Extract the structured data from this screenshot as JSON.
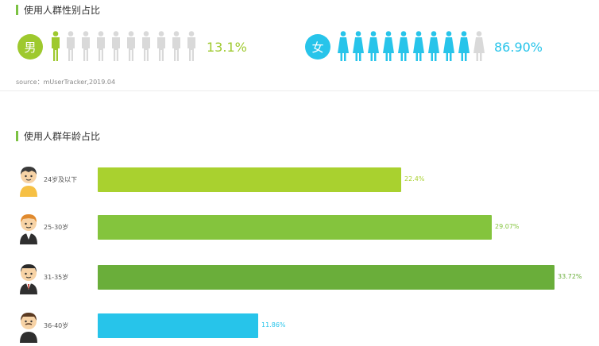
{
  "section1": {
    "title": "使用人群性别占比"
  },
  "gender": {
    "male": {
      "symbol": "男",
      "percent_text": "13.1%",
      "value": 13.1,
      "color": "#9ec92e",
      "icon": "male-person-icon"
    },
    "female": {
      "symbol": "女",
      "percent_text": "86.90%",
      "value": 86.9,
      "color": "#27c4ea",
      "icon": "female-person-icon"
    },
    "inactive_color": "#d9d9d9"
  },
  "source": {
    "text": "source：mUserTracker,2019.04"
  },
  "section2": {
    "title": "使用人群年龄占比"
  },
  "chart_data": [
    {
      "type": "pictogram",
      "categories": [
        "男",
        "女"
      ],
      "values": [
        13.1,
        86.9
      ],
      "labels": [
        "13.1%",
        "86.90%"
      ],
      "title": "使用人群性别占比"
    },
    {
      "type": "bar",
      "orientation": "horizontal",
      "title": "使用人群年龄占比",
      "categories": [
        "24岁及以下",
        "25-30岁",
        "31-35岁",
        "36-40岁"
      ],
      "values": [
        22.4,
        29.07,
        33.72,
        11.86
      ],
      "labels": [
        "22.4%",
        "29.07%",
        "33.72%",
        "11.86%"
      ],
      "colors": [
        "#a9d12f",
        "#84c43d",
        "#6aae3a",
        "#27c4ea"
      ],
      "xlim": [
        0,
        33.72
      ]
    }
  ]
}
